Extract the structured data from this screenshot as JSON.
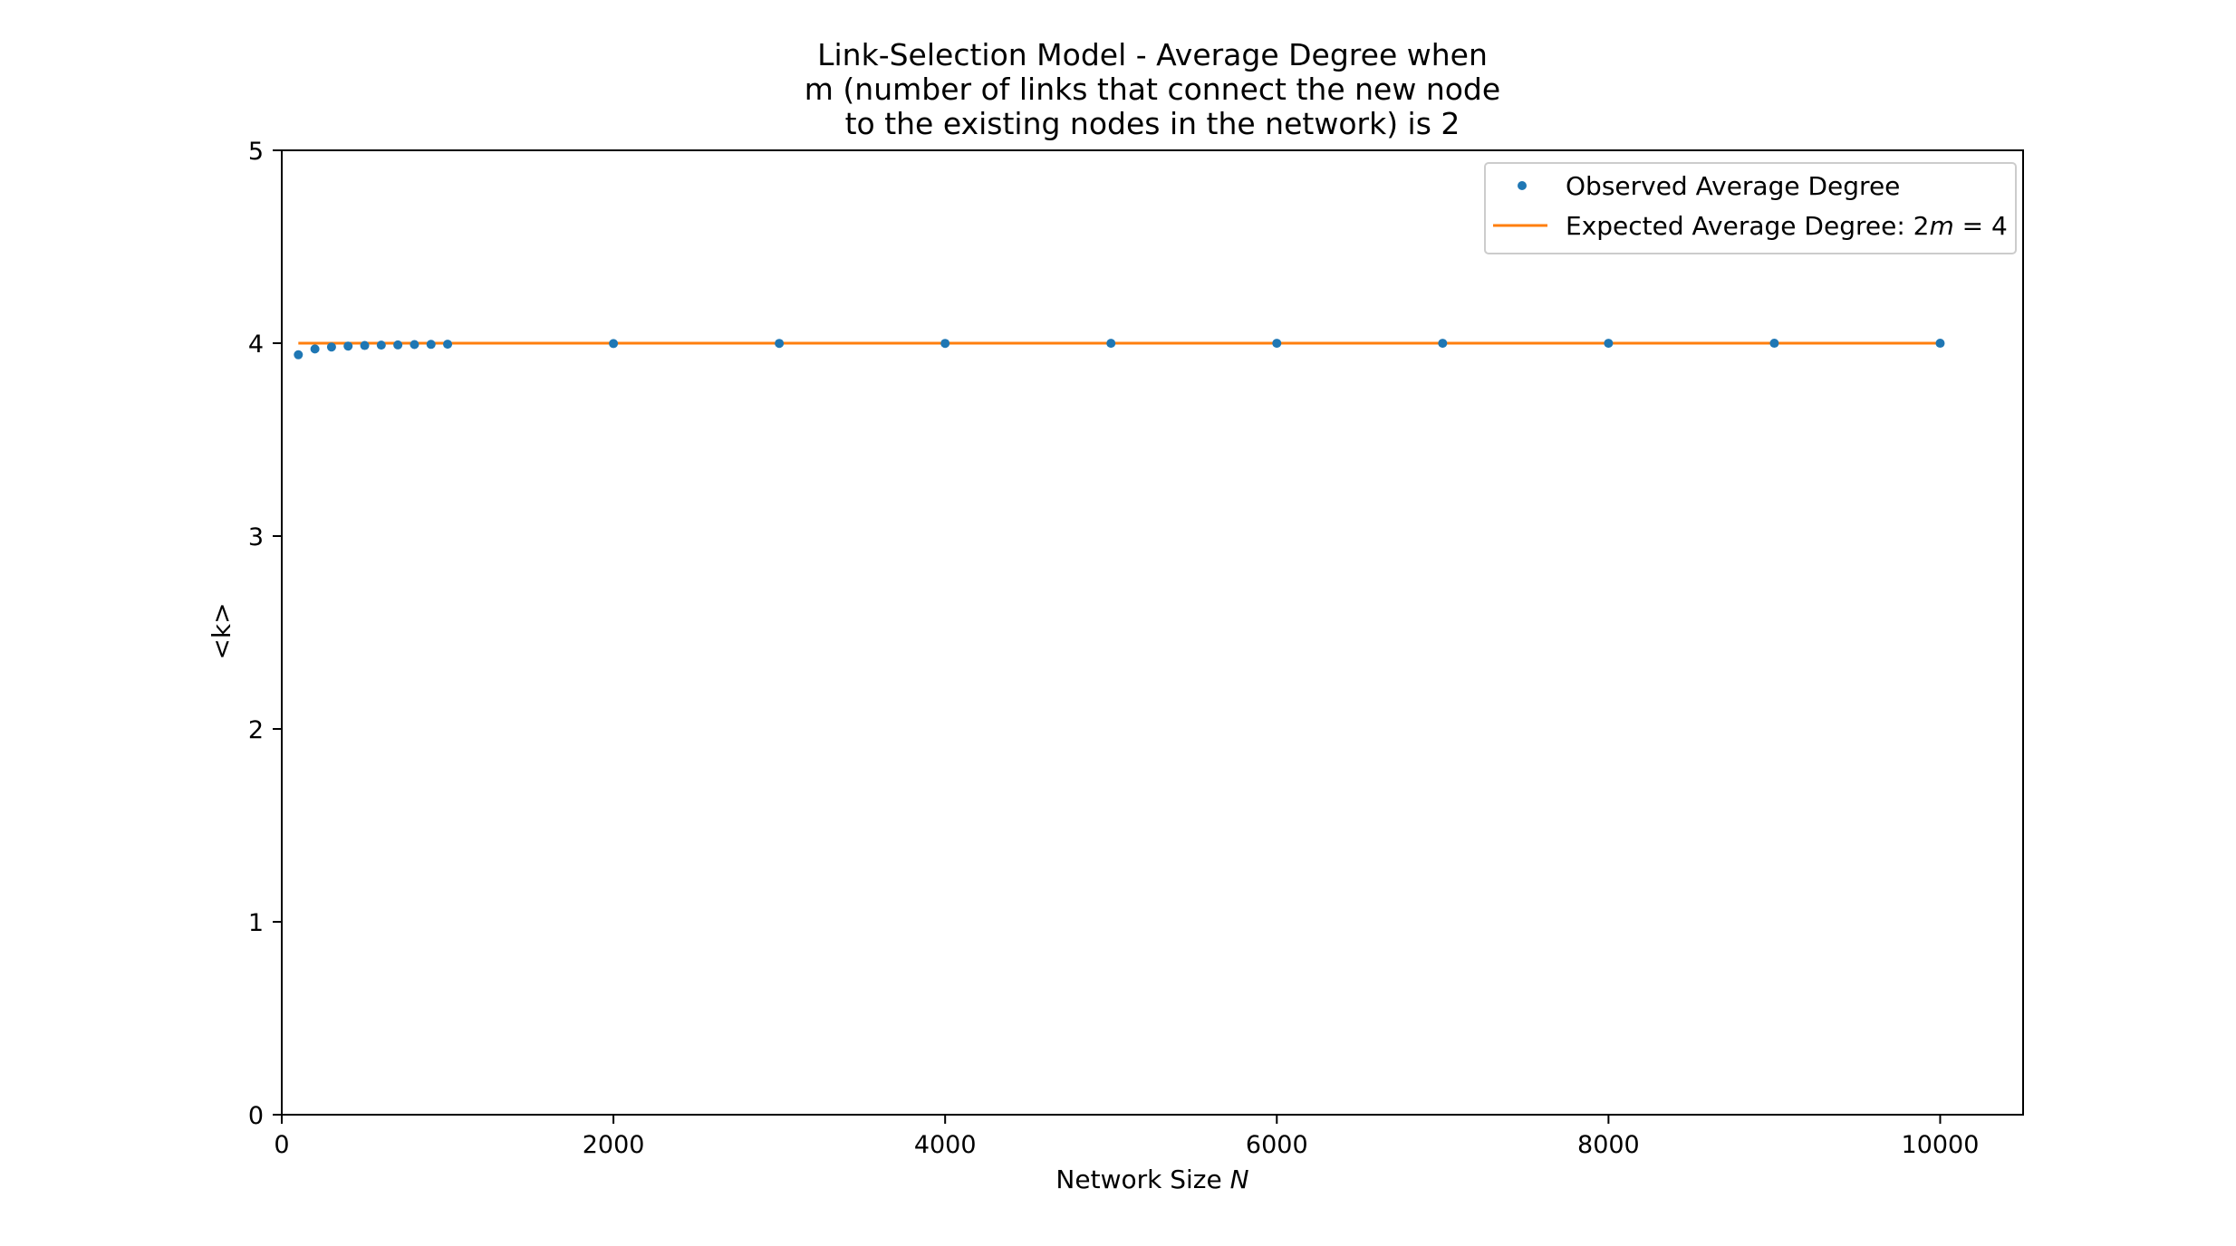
{
  "chart_data": {
    "type": "scatter",
    "title": [
      "Link-Selection Model - Average Degree when",
      "m (number of links that connect the new node",
      "to the existing nodes in the network) is 2"
    ],
    "xlabel": "Network Size N",
    "ylabel": "<k>",
    "xlim": [
      0,
      10500
    ],
    "ylim": [
      0,
      5
    ],
    "x_ticks": [
      0,
      2000,
      4000,
      6000,
      8000,
      10000
    ],
    "y_ticks": [
      0,
      1,
      2,
      3,
      4,
      5
    ],
    "grid": false,
    "legend_position": "top-right",
    "series": [
      {
        "name": "Observed Average Degree",
        "kind": "scatter",
        "color": "#1f77b4",
        "x": [
          100,
          200,
          300,
          400,
          500,
          600,
          700,
          800,
          900,
          1000,
          2000,
          3000,
          4000,
          5000,
          6000,
          7000,
          8000,
          9000,
          10000
        ],
        "y": [
          3.94,
          3.97,
          3.98,
          3.985,
          3.988,
          3.99,
          3.991,
          3.993,
          3.994,
          3.995,
          3.998,
          3.999,
          3.999,
          3.9995,
          3.9996,
          3.9997,
          3.9997,
          3.9998,
          3.9998
        ]
      },
      {
        "name": "Expected Average Degree: 2m = 4",
        "kind": "line",
        "color": "#ff7f0e",
        "x": [
          100,
          10000
        ],
        "y": [
          4,
          4
        ]
      }
    ]
  }
}
